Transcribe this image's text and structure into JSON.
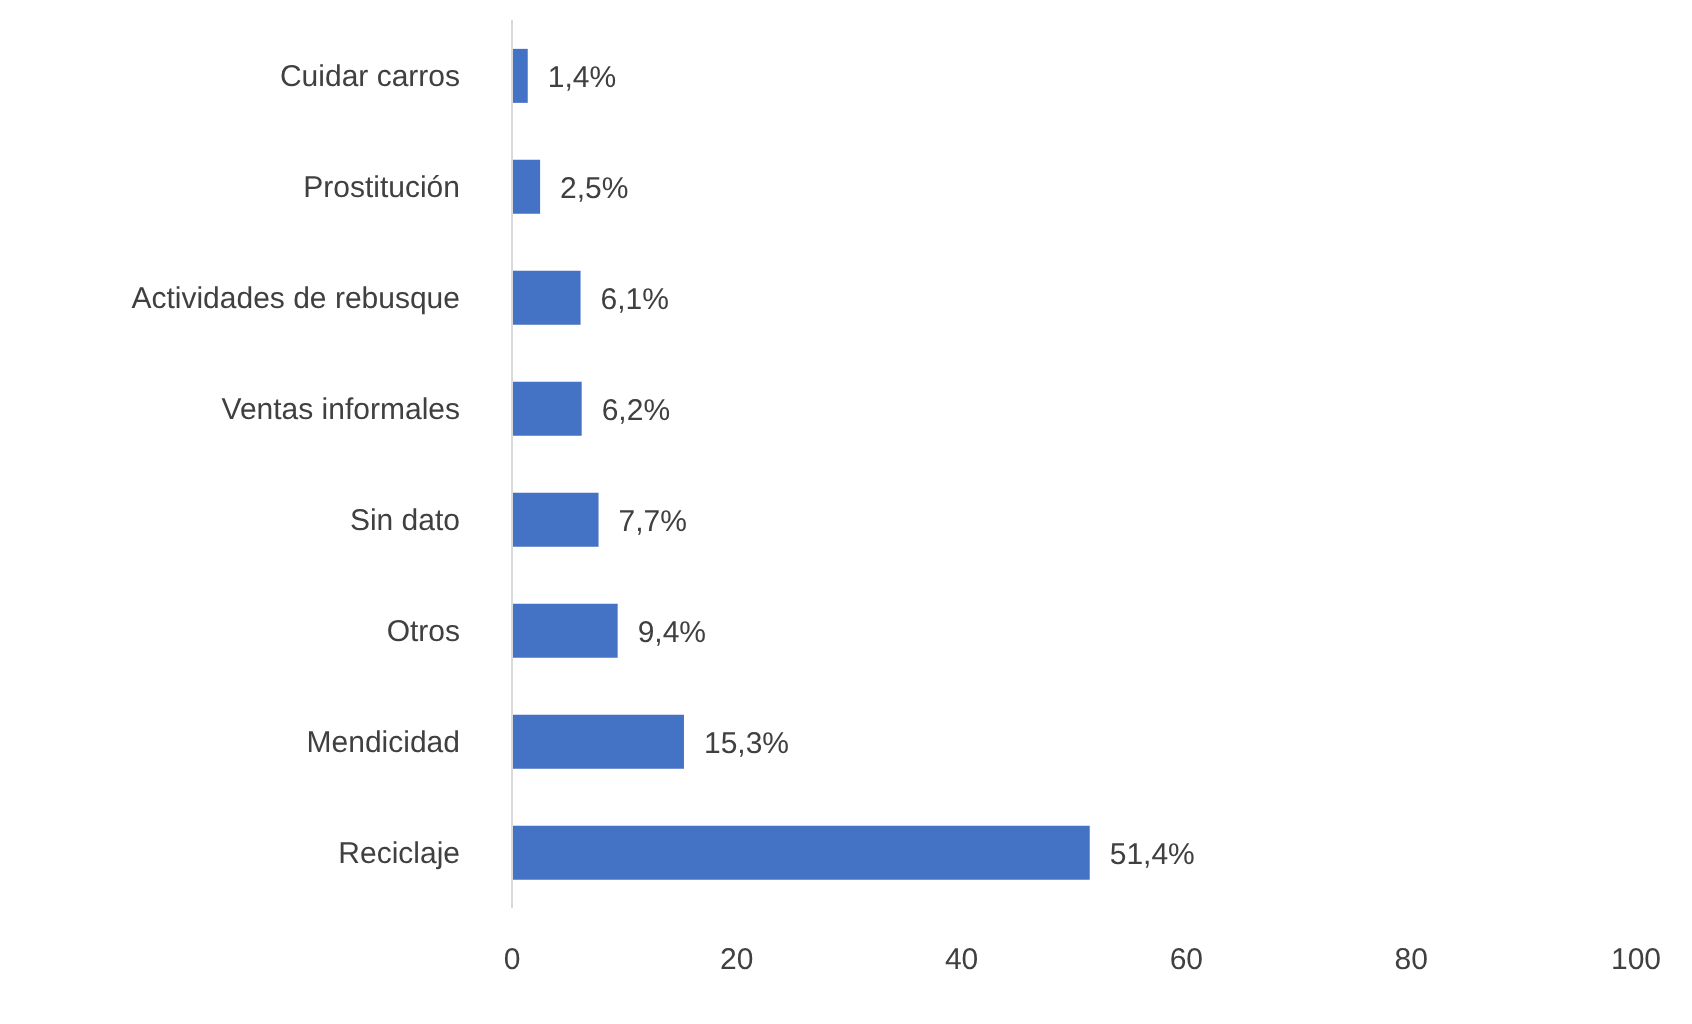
{
  "chart_data": {
    "type": "bar",
    "orientation": "horizontal",
    "categories": [
      "Cuidar carros",
      "Prostitución",
      "Actividades de rebusque",
      "Ventas informales",
      "Sin dato",
      "Otros",
      "Mendicidad",
      "Reciclaje"
    ],
    "values": [
      1.4,
      2.5,
      6.1,
      6.2,
      7.7,
      9.4,
      15.3,
      51.4
    ],
    "value_labels": [
      "1,4%",
      "2,5%",
      "6,1%",
      "6,2%",
      "7,7%",
      "9,4%",
      "15,3%",
      "51,4%"
    ],
    "color": "#4472c4",
    "xlim": [
      0,
      100
    ],
    "xticks": [
      0,
      20,
      40,
      60,
      80,
      100
    ],
    "grid": false,
    "legend": false
  }
}
